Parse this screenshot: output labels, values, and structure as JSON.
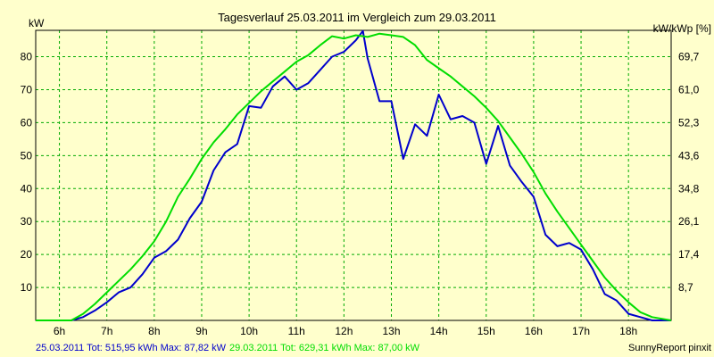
{
  "chart_data": {
    "type": "line",
    "title": "Tagesverlauf 25.03.2011 im Vergleich zum 29.03.2011",
    "ylabel_left": "kW",
    "ylabel_right": "kW/kWp [%]",
    "x_ticks": [
      "6h",
      "7h",
      "8h",
      "9h",
      "10h",
      "11h",
      "12h",
      "13h",
      "14h",
      "15h",
      "16h",
      "17h",
      "18h"
    ],
    "y_ticks_left": [
      "10",
      "20",
      "30",
      "40",
      "50",
      "60",
      "70",
      "80"
    ],
    "y_ticks_right": [
      "8,7",
      "17,4",
      "26,1",
      "34,8",
      "43,6",
      "52,3",
      "61,0",
      "69,7"
    ],
    "xlim": [
      5.5,
      18.9
    ],
    "ylim": [
      0,
      88
    ],
    "grid": true,
    "series": [
      {
        "name": "25.03.2011",
        "color": "#0000cc",
        "x": [
          5.5,
          6.25,
          6.5,
          6.75,
          7.0,
          7.25,
          7.5,
          7.75,
          8.0,
          8.25,
          8.5,
          8.75,
          9.0,
          9.25,
          9.5,
          9.75,
          10.0,
          10.25,
          10.5,
          10.75,
          11.0,
          11.25,
          11.5,
          11.75,
          12.0,
          12.25,
          12.4,
          12.5,
          12.75,
          13.0,
          13.25,
          13.5,
          13.75,
          14.0,
          14.25,
          14.5,
          14.75,
          15.0,
          15.25,
          15.5,
          15.75,
          16.0,
          16.25,
          16.5,
          16.75,
          17.0,
          17.25,
          17.5,
          17.75,
          18.0,
          18.25,
          18.5,
          18.9
        ],
        "y": [
          0,
          0,
          1,
          3,
          5.5,
          8.5,
          10,
          14,
          19,
          21,
          24.5,
          31,
          36,
          45.5,
          51,
          53.5,
          65,
          64.5,
          71,
          74,
          70,
          72,
          76,
          80,
          81.5,
          85,
          87.8,
          79.5,
          66.5,
          66.5,
          49,
          59.5,
          56,
          68.5,
          61,
          62,
          60,
          47.5,
          59,
          47,
          42,
          37.5,
          26,
          22.5,
          23.5,
          21.5,
          15.5,
          8,
          6,
          2,
          1,
          0,
          0
        ]
      },
      {
        "name": "29.03.2011",
        "color": "#00dd00",
        "x": [
          5.5,
          6.25,
          6.5,
          6.75,
          7.0,
          7.25,
          7.5,
          7.75,
          8.0,
          8.25,
          8.5,
          8.75,
          9.0,
          9.25,
          9.5,
          9.75,
          10.0,
          10.25,
          10.5,
          10.75,
          11.0,
          11.25,
          11.5,
          11.75,
          12.0,
          12.25,
          12.5,
          12.75,
          13.0,
          13.25,
          13.5,
          13.75,
          14.0,
          14.25,
          14.5,
          14.75,
          15.0,
          15.25,
          15.5,
          15.75,
          16.0,
          16.25,
          16.5,
          16.75,
          17.0,
          17.25,
          17.5,
          17.75,
          18.0,
          18.25,
          18.5,
          18.9
        ],
        "y": [
          0,
          0,
          2,
          5,
          8.5,
          12,
          15.5,
          19.5,
          24,
          30,
          37.5,
          43,
          49,
          54,
          58,
          62.5,
          66,
          69.5,
          72.5,
          75.5,
          78.5,
          80.5,
          83.5,
          86.2,
          85.5,
          86.5,
          86,
          87,
          86.5,
          86,
          83.5,
          79,
          76.5,
          74,
          71,
          68,
          64.5,
          60.5,
          55.5,
          50.5,
          45,
          38.5,
          33,
          28,
          23,
          18,
          13,
          9,
          5.5,
          2.5,
          1,
          0
        ]
      }
    ],
    "footer": {
      "series1_text": "25.03.2011 Tot: 515,95 kWh Max: 87,82 kW",
      "series2_text": "29.03.2011 Tot: 629,31 kWh Max: 87,00 kW",
      "brand": "SunnyReport pinxit"
    }
  }
}
